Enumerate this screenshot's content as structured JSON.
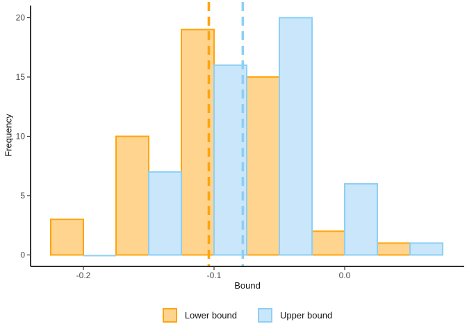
{
  "chart_data": {
    "type": "bar",
    "chart_kind": "dodged-histogram",
    "title": "",
    "xlabel": "Bound",
    "ylabel": "Frequency",
    "x_ticks": [
      {
        "value": -0.2,
        "label": "-0.2"
      },
      {
        "value": -0.1,
        "label": "-0.1"
      },
      {
        "value": 0.0,
        "label": "0.0"
      }
    ],
    "y_ticks": [
      {
        "value": 0,
        "label": "0"
      },
      {
        "value": 5,
        "label": "5"
      },
      {
        "value": 10,
        "label": "10"
      },
      {
        "value": 15,
        "label": "15"
      },
      {
        "value": 20,
        "label": "20"
      }
    ],
    "xlim": [
      -0.24,
      0.091
    ],
    "ylim": [
      0,
      20
    ],
    "bin_width": 0.05,
    "bar_width": 0.025,
    "grid": false,
    "legend_position": "bottom",
    "series": [
      {
        "name": "Lower bound",
        "fill": "#FED48F",
        "stroke": "#FFA40E",
        "bins": [
          {
            "x0": -0.225,
            "x1": -0.2,
            "count": 3
          },
          {
            "x0": -0.175,
            "x1": -0.15,
            "count": 10
          },
          {
            "x0": -0.125,
            "x1": -0.1,
            "count": 19
          },
          {
            "x0": -0.075,
            "x1": -0.05,
            "count": 15
          },
          {
            "x0": -0.025,
            "x1": 0.0,
            "count": 2
          },
          {
            "x0": 0.025,
            "x1": 0.05,
            "count": 1
          }
        ],
        "mean_vline": -0.104
      },
      {
        "name": "Upper bound",
        "fill": "#C9E6FA",
        "stroke": "#8DCFF5",
        "bins": [
          {
            "x0": -0.2,
            "x1": -0.175,
            "count": 0
          },
          {
            "x0": -0.15,
            "x1": -0.125,
            "count": 7
          },
          {
            "x0": -0.1,
            "x1": -0.075,
            "count": 16
          },
          {
            "x0": -0.05,
            "x1": -0.025,
            "count": 20
          },
          {
            "x0": 0.0,
            "x1": 0.025,
            "count": 6
          },
          {
            "x0": 0.05,
            "x1": 0.075,
            "count": 1
          }
        ],
        "mean_vline": -0.078
      }
    ]
  }
}
